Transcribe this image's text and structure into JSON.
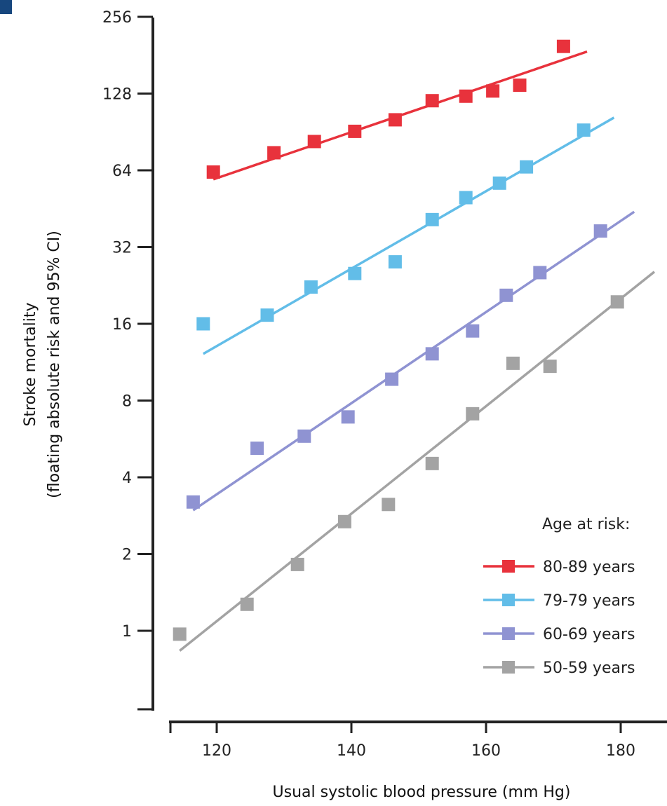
{
  "chart_data": {
    "type": "scatter",
    "xlabel": "Usual systolic blood pressure (mm Hg)",
    "ylabel_line1": "Stroke mortality",
    "ylabel_line2": "(floating absolute risk and 95% CI)",
    "y_scale": "log2",
    "xlim": [
      113,
      186
    ],
    "ylim": [
      0.5,
      256
    ],
    "x_ticks": [
      120,
      140,
      160,
      180
    ],
    "y_ticks": [
      1,
      2,
      4,
      8,
      16,
      32,
      64,
      128,
      256
    ],
    "x_tick_labels": [
      "120",
      "140",
      "160",
      "180"
    ],
    "y_tick_labels": [
      "1",
      "2",
      "4",
      "8",
      "16",
      "32",
      "64",
      "128",
      "256"
    ],
    "grid": false,
    "legend_title": "Age at risk:",
    "legend_position": "bottom-right",
    "series": [
      {
        "name": "80-89 years",
        "color": "#e8323c",
        "points": [
          [
            119.5,
            63.0
          ],
          [
            128.5,
            75.0
          ],
          [
            134.5,
            83.0
          ],
          [
            140.5,
            91.0
          ],
          [
            146.5,
            101.0
          ],
          [
            152,
            120.0
          ],
          [
            157,
            125.0
          ],
          [
            161,
            131.0
          ],
          [
            165,
            138.0
          ],
          [
            171.5,
            196.0
          ]
        ],
        "fit": [
          [
            119.5,
            59.0
          ],
          [
            175,
            187.0
          ]
        ]
      },
      {
        "name": "79-79 years",
        "color": "#62bde8",
        "points": [
          [
            118,
            16.0
          ],
          [
            127.5,
            17.3
          ],
          [
            134,
            22.3
          ],
          [
            140.5,
            25.2
          ],
          [
            146.5,
            28.0
          ],
          [
            152,
            41.0
          ],
          [
            157,
            50.0
          ],
          [
            162,
            57.0
          ],
          [
            166,
            66.0
          ],
          [
            174.5,
            92.0
          ]
        ],
        "fit": [
          [
            118,
            12.2
          ],
          [
            179,
            103.0
          ]
        ]
      },
      {
        "name": "60-69 years",
        "color": "#8f93d2",
        "points": [
          [
            116.5,
            3.2
          ],
          [
            126,
            5.2
          ],
          [
            133,
            5.8
          ],
          [
            139.5,
            6.9
          ],
          [
            146,
            9.7
          ],
          [
            152,
            12.2
          ],
          [
            158,
            15.0
          ],
          [
            163,
            20.7
          ],
          [
            168,
            25.4
          ],
          [
            177,
            37.0
          ]
        ],
        "fit": [
          [
            116.5,
            2.97
          ],
          [
            182,
            44.0
          ]
        ]
      },
      {
        "name": "50-59 years",
        "color": "#a3a3a3",
        "points": [
          [
            114.5,
            0.97
          ],
          [
            124.5,
            1.27
          ],
          [
            132,
            1.82
          ],
          [
            139,
            2.68
          ],
          [
            145.5,
            3.13
          ],
          [
            152,
            4.53
          ],
          [
            158,
            7.1
          ],
          [
            164,
            11.2
          ],
          [
            169.5,
            10.9
          ],
          [
            179.5,
            19.5
          ]
        ],
        "fit": [
          [
            114.5,
            0.835
          ],
          [
            185,
            25.6
          ]
        ]
      }
    ]
  }
}
